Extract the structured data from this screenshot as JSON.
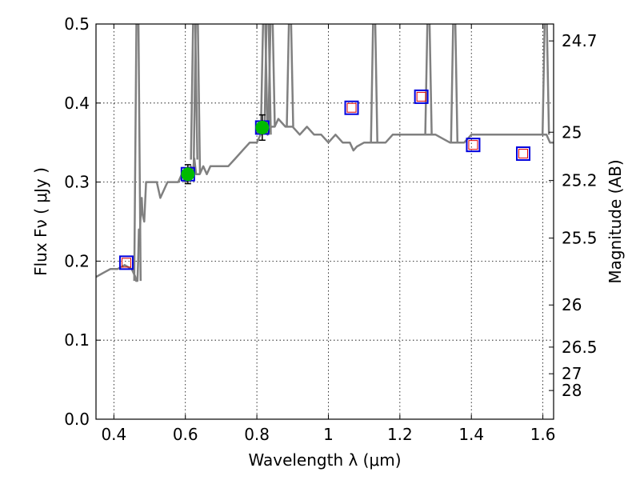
{
  "chart_data": {
    "type": "scatter",
    "xlabel": "Wavelength  λ (μm)",
    "ylabel": "Flux  Fν  ( μJy )",
    "ylabel_right": "Magnitude (AB)",
    "xlim": [
      0.35,
      1.63
    ],
    "ylim": [
      0.0,
      0.5
    ],
    "grid": true,
    "x_ticks": [
      0.4,
      0.6,
      0.8,
      1.0,
      1.2,
      1.4,
      1.6
    ],
    "x_tick_labels": [
      "0.4",
      "0.6",
      "0.8",
      "1",
      "1.2",
      "1.4",
      "1.6"
    ],
    "y_ticks": [
      0.0,
      0.1,
      0.2,
      0.3,
      0.4,
      0.5
    ],
    "y_tick_labels": [
      "0.0",
      "0.1",
      "0.2",
      "0.3",
      "0.4",
      "0.5"
    ],
    "mag_ticks": [
      {
        "flux": 0.0363,
        "label": "28"
      },
      {
        "flux": 0.0575,
        "label": "27"
      },
      {
        "flux": 0.0912,
        "label": "26.5"
      },
      {
        "flux": 0.1445,
        "label": "26"
      },
      {
        "flux": 0.2291,
        "label": "25.5"
      },
      {
        "flux": 0.302,
        "label": "25.2"
      },
      {
        "flux": 0.3631,
        "label": "25"
      },
      {
        "flux": 0.4786,
        "label": "24.7"
      }
    ],
    "colors": {
      "model": "#808080",
      "observed": "#00bb00",
      "model_box": "#0000dd",
      "model_inner": "#dd0000",
      "frame": "#000000"
    },
    "series": [
      {
        "type": "line",
        "x": [
          0.35,
          0.37,
          0.39,
          0.41,
          0.43,
          0.45,
          0.46,
          0.462,
          0.466,
          0.468,
          0.47,
          0.472,
          0.474,
          0.478,
          0.48,
          0.485,
          0.49,
          0.5,
          0.52,
          0.53,
          0.54,
          0.55,
          0.56,
          0.57,
          0.58,
          0.59,
          0.6,
          0.61,
          0.615,
          0.62,
          0.625,
          0.63,
          0.64,
          0.65,
          0.66,
          0.67,
          0.68,
          0.7,
          0.72,
          0.74,
          0.76,
          0.78,
          0.8,
          0.82,
          0.83,
          0.84,
          0.85,
          0.86,
          0.88,
          0.9,
          0.92,
          0.94,
          0.96,
          0.98,
          1.0,
          1.02,
          1.04,
          1.06,
          1.07,
          1.08,
          1.1,
          1.12,
          1.14,
          1.16,
          1.18,
          1.2,
          1.22,
          1.24,
          1.26,
          1.28,
          1.3,
          1.32,
          1.34,
          1.36,
          1.38,
          1.4,
          1.42,
          1.44,
          1.46,
          1.48,
          1.5,
          1.52,
          1.54,
          1.56,
          1.58,
          1.6,
          1.61,
          1.62,
          1.63
        ],
        "y": [
          0.18,
          0.185,
          0.19,
          0.19,
          0.195,
          0.19,
          0.18,
          0.175,
          0.175,
          0.2,
          0.24,
          0.22,
          0.25,
          0.28,
          0.26,
          0.25,
          0.3,
          0.3,
          0.3,
          0.28,
          0.29,
          0.3,
          0.3,
          0.3,
          0.3,
          0.31,
          0.3,
          0.31,
          0.32,
          0.31,
          0.33,
          0.31,
          0.31,
          0.32,
          0.31,
          0.32,
          0.32,
          0.32,
          0.32,
          0.33,
          0.34,
          0.35,
          0.35,
          0.37,
          0.36,
          0.37,
          0.37,
          0.38,
          0.37,
          0.37,
          0.36,
          0.37,
          0.36,
          0.36,
          0.35,
          0.36,
          0.35,
          0.35,
          0.34,
          0.345,
          0.35,
          0.35,
          0.35,
          0.35,
          0.36,
          0.36,
          0.36,
          0.36,
          0.36,
          0.36,
          0.36,
          0.355,
          0.35,
          0.35,
          0.35,
          0.36,
          0.36,
          0.36,
          0.36,
          0.36,
          0.36,
          0.36,
          0.36,
          0.36,
          0.36,
          0.36,
          0.36,
          0.35,
          0.35
        ]
      },
      {
        "type": "spikes",
        "x": [
          0.466,
          0.6246,
          0.632,
          0.8203,
          0.83,
          0.8411,
          0.8926,
          1.128,
          1.28,
          1.352,
          1.608
        ]
      },
      {
        "type": "points",
        "x": [
          0.607,
          0.815
        ],
        "y": [
          0.31,
          0.369
        ],
        "yerr": [
          0.012,
          0.016
        ]
      },
      {
        "type": "model-squares",
        "x": [
          0.435,
          0.607,
          0.815,
          1.065,
          1.26,
          1.405,
          1.545
        ],
        "y": [
          0.198,
          0.31,
          0.369,
          0.394,
          0.408,
          0.347,
          0.336
        ]
      }
    ]
  }
}
